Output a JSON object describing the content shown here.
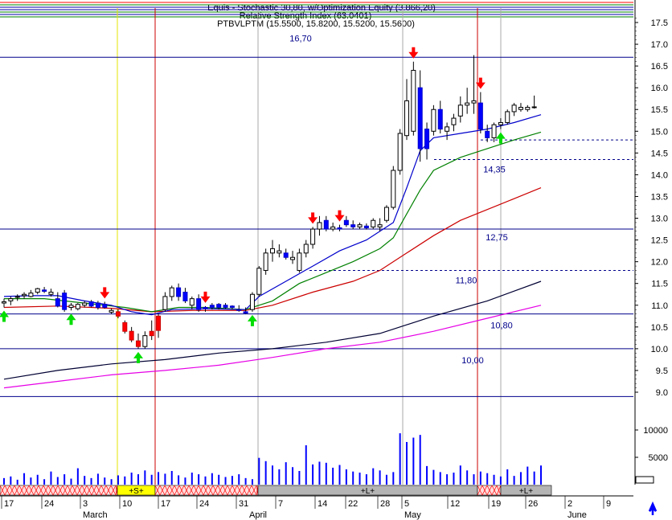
{
  "header": {
    "line1": "Equis - Stochastic 30,80, w/Optimization Equity (3.866,20)",
    "line2": "Relative Strength Index (63.0401)",
    "line3": "PTBVLPTM (15.5500, 15.8200, 15.5200, 15.5600)"
  },
  "colors": {
    "background": "#ffffff",
    "level_line": "#00008b",
    "up_candle": "#ffffff",
    "down_candle": "#0000ff",
    "red_candle": "#ff0000",
    "ma_fast": "#0000cc",
    "ma_green": "#008000",
    "ma_red": "#cc0000",
    "ma_black": "#000033",
    "ma_magenta": "#e600e6",
    "volume": "#0000ff",
    "buy_arrow": "#00dd00",
    "sell_arrow": "#ff0000",
    "signal_red": "#ff0000",
    "signal_yellow": "#ffff00",
    "signal_gray": "#b4b4b4"
  },
  "chart_data": {
    "type": "candlestick",
    "price_axis": {
      "ticks": [
        "17.5",
        "17.0",
        "16.5",
        "16.0",
        "15.5",
        "15.0",
        "14.5",
        "14.0",
        "13.5",
        "13.0",
        "12.5",
        "12.0",
        "11.5",
        "11.0",
        "10.5",
        "10.0",
        "9.5",
        "9.0"
      ],
      "range": [
        8.9,
        17.8
      ]
    },
    "volume_axis": {
      "ticks": [
        "10000",
        "5000"
      ],
      "range": [
        0,
        13000
      ]
    },
    "x_labels": [
      "17",
      "24",
      "3",
      "10",
      "17",
      "24",
      "31",
      "7",
      "14",
      "22",
      "28",
      "5",
      "12",
      "19",
      "26",
      "2",
      "9"
    ],
    "month_labels": [
      "March",
      "April",
      "May",
      "June"
    ],
    "level_lines": [
      {
        "value": 16.7,
        "label": "16,70"
      },
      {
        "value": 12.75,
        "label": "12,75"
      },
      {
        "value": 10.8,
        "label": "10,80"
      },
      {
        "value": 10.0,
        "label": "10,00"
      },
      {
        "value": 8.9,
        "label": ""
      }
    ],
    "dashed_levels": [
      {
        "value": 14.8,
        "label": "14,35",
        "label_value": 14.35
      },
      {
        "value": 14.35,
        "label": ""
      },
      {
        "value": 11.8,
        "label": "11,80"
      }
    ],
    "candles": [
      {
        "o": 11.05,
        "h": 11.15,
        "l": 10.95,
        "c": 11.08,
        "t": "u"
      },
      {
        "o": 11.1,
        "h": 11.2,
        "l": 11.0,
        "c": 11.15,
        "t": "u"
      },
      {
        "o": 11.18,
        "h": 11.25,
        "l": 11.1,
        "c": 11.2,
        "t": "u"
      },
      {
        "o": 11.22,
        "h": 11.3,
        "l": 11.15,
        "c": 11.25,
        "t": "u"
      },
      {
        "o": 11.2,
        "h": 11.35,
        "l": 11.18,
        "c": 11.28,
        "t": "u"
      },
      {
        "o": 11.3,
        "h": 11.4,
        "l": 11.25,
        "c": 11.38,
        "t": "u"
      },
      {
        "o": 11.35,
        "h": 11.42,
        "l": 11.28,
        "c": 11.32,
        "t": "d"
      },
      {
        "o": 11.3,
        "h": 11.38,
        "l": 11.2,
        "c": 11.25,
        "t": "u"
      },
      {
        "o": 11.15,
        "h": 11.3,
        "l": 10.95,
        "c": 10.98,
        "t": "d"
      },
      {
        "o": 11.28,
        "h": 11.35,
        "l": 10.85,
        "c": 10.9,
        "t": "d"
      },
      {
        "o": 10.95,
        "h": 11.05,
        "l": 10.88,
        "c": 11.0,
        "t": "u"
      },
      {
        "o": 10.92,
        "h": 11.05,
        "l": 10.88,
        "c": 11.02,
        "t": "u"
      },
      {
        "o": 11.0,
        "h": 11.1,
        "l": 10.95,
        "c": 11.05,
        "t": "u"
      },
      {
        "o": 11.08,
        "h": 11.12,
        "l": 10.95,
        "c": 10.98,
        "t": "d"
      },
      {
        "o": 10.95,
        "h": 11.1,
        "l": 10.9,
        "c": 11.05,
        "t": "d"
      },
      {
        "o": 11.02,
        "h": 11.08,
        "l": 10.92,
        "c": 10.95,
        "t": "d"
      },
      {
        "o": 10.88,
        "h": 10.92,
        "l": 10.8,
        "c": 10.84,
        "t": "u"
      },
      {
        "o": 10.85,
        "h": 10.9,
        "l": 10.7,
        "c": 10.75,
        "t": "r"
      },
      {
        "o": 10.6,
        "h": 10.65,
        "l": 10.35,
        "c": 10.4,
        "t": "r"
      },
      {
        "o": 10.4,
        "h": 10.5,
        "l": 10.15,
        "c": 10.2,
        "t": "r"
      },
      {
        "o": 10.18,
        "h": 10.35,
        "l": 10.0,
        "c": 10.05,
        "t": "r"
      },
      {
        "o": 10.05,
        "h": 10.4,
        "l": 10.0,
        "c": 10.3,
        "t": "u"
      },
      {
        "o": 10.4,
        "h": 10.65,
        "l": 10.2,
        "c": 10.3,
        "t": "r"
      },
      {
        "o": 10.42,
        "h": 10.8,
        "l": 10.25,
        "c": 10.75,
        "t": "r"
      },
      {
        "o": 10.9,
        "h": 11.3,
        "l": 10.85,
        "c": 11.2,
        "t": "u"
      },
      {
        "o": 11.2,
        "h": 11.45,
        "l": 11.1,
        "c": 11.4,
        "t": "u"
      },
      {
        "o": 11.4,
        "h": 11.5,
        "l": 11.1,
        "c": 11.2,
        "t": "d"
      },
      {
        "o": 11.3,
        "h": 11.4,
        "l": 11.05,
        "c": 11.1,
        "t": "d"
      },
      {
        "o": 11.0,
        "h": 11.2,
        "l": 10.9,
        "c": 11.15,
        "t": "u"
      },
      {
        "o": 11.15,
        "h": 11.25,
        "l": 10.85,
        "c": 10.9,
        "t": "d"
      },
      {
        "o": 10.92,
        "h": 10.98,
        "l": 10.85,
        "c": 10.95,
        "t": "d"
      },
      {
        "o": 10.95,
        "h": 11.05,
        "l": 10.9,
        "c": 11.0,
        "t": "d"
      },
      {
        "o": 10.95,
        "h": 11.05,
        "l": 10.9,
        "c": 11.02,
        "t": "d"
      },
      {
        "o": 11.0,
        "h": 11.05,
        "l": 10.92,
        "c": 10.95,
        "t": "d"
      },
      {
        "o": 10.95,
        "h": 11.0,
        "l": 10.9,
        "c": 10.98,
        "t": "d"
      },
      {
        "o": 10.9,
        "h": 11.0,
        "l": 10.85,
        "c": 10.88,
        "t": "d"
      },
      {
        "o": 10.85,
        "h": 10.95,
        "l": 10.8,
        "c": 10.82,
        "t": "d"
      },
      {
        "o": 10.9,
        "h": 11.3,
        "l": 10.85,
        "c": 11.25,
        "t": "u"
      },
      {
        "o": 11.25,
        "h": 11.9,
        "l": 11.2,
        "c": 11.85,
        "t": "u"
      },
      {
        "o": 11.8,
        "h": 12.3,
        "l": 11.7,
        "c": 12.2,
        "t": "u"
      },
      {
        "o": 12.2,
        "h": 12.5,
        "l": 12.0,
        "c": 12.3,
        "t": "u"
      },
      {
        "o": 12.25,
        "h": 12.4,
        "l": 12.1,
        "c": 12.2,
        "t": "u"
      },
      {
        "o": 12.2,
        "h": 12.3,
        "l": 12.05,
        "c": 12.1,
        "t": "d"
      },
      {
        "o": 12.1,
        "h": 12.25,
        "l": 11.95,
        "c": 12.05,
        "t": "u"
      },
      {
        "o": 11.8,
        "h": 12.3,
        "l": 11.75,
        "c": 12.2,
        "t": "u"
      },
      {
        "o": 12.2,
        "h": 12.5,
        "l": 12.1,
        "c": 12.4,
        "t": "u"
      },
      {
        "o": 12.4,
        "h": 12.8,
        "l": 12.3,
        "c": 12.75,
        "t": "u"
      },
      {
        "o": 12.75,
        "h": 13.05,
        "l": 12.6,
        "c": 12.9,
        "t": "u"
      },
      {
        "o": 12.95,
        "h": 13.05,
        "l": 12.7,
        "c": 12.75,
        "t": "d"
      },
      {
        "o": 12.75,
        "h": 12.9,
        "l": 12.7,
        "c": 12.8,
        "t": "u"
      },
      {
        "o": 12.75,
        "h": 12.85,
        "l": 12.7,
        "c": 12.78,
        "t": "d"
      },
      {
        "o": 12.95,
        "h": 13.05,
        "l": 12.8,
        "c": 12.85,
        "t": "d"
      },
      {
        "o": 12.85,
        "h": 12.95,
        "l": 12.75,
        "c": 12.8,
        "t": "d"
      },
      {
        "o": 12.8,
        "h": 12.9,
        "l": 12.75,
        "c": 12.85,
        "t": "u"
      },
      {
        "o": 12.78,
        "h": 12.88,
        "l": 12.74,
        "c": 12.82,
        "t": "d"
      },
      {
        "o": 12.8,
        "h": 13.0,
        "l": 12.75,
        "c": 12.95,
        "t": "u"
      },
      {
        "o": 12.85,
        "h": 13.0,
        "l": 12.7,
        "c": 12.8,
        "t": "u"
      },
      {
        "o": 12.95,
        "h": 13.3,
        "l": 12.9,
        "c": 13.25,
        "t": "u"
      },
      {
        "o": 13.25,
        "h": 14.2,
        "l": 13.2,
        "c": 14.1,
        "t": "u"
      },
      {
        "o": 14.1,
        "h": 15.05,
        "l": 14.0,
        "c": 14.95,
        "t": "u"
      },
      {
        "o": 14.9,
        "h": 16.2,
        "l": 14.8,
        "c": 15.7,
        "t": "u"
      },
      {
        "o": 15.0,
        "h": 16.6,
        "l": 14.9,
        "c": 16.4,
        "t": "u"
      },
      {
        "o": 16.0,
        "h": 16.4,
        "l": 14.3,
        "c": 14.6,
        "t": "d"
      },
      {
        "o": 14.6,
        "h": 15.2,
        "l": 14.35,
        "c": 15.05,
        "t": "d"
      },
      {
        "o": 15.0,
        "h": 15.6,
        "l": 14.9,
        "c": 15.5,
        "t": "u"
      },
      {
        "o": 15.5,
        "h": 15.7,
        "l": 14.95,
        "c": 15.05,
        "t": "d"
      },
      {
        "o": 15.0,
        "h": 15.2,
        "l": 14.8,
        "c": 15.1,
        "t": "u"
      },
      {
        "o": 15.15,
        "h": 15.4,
        "l": 15.0,
        "c": 15.3,
        "t": "u"
      },
      {
        "o": 15.35,
        "h": 15.8,
        "l": 15.2,
        "c": 15.6,
        "t": "u"
      },
      {
        "o": 15.6,
        "h": 16.0,
        "l": 15.4,
        "c": 15.65,
        "t": "u"
      },
      {
        "o": 15.7,
        "h": 16.75,
        "l": 15.4,
        "c": 15.65,
        "t": "u"
      },
      {
        "o": 15.65,
        "h": 15.9,
        "l": 14.95,
        "c": 15.05,
        "t": "d"
      },
      {
        "o": 15.0,
        "h": 15.15,
        "l": 14.75,
        "c": 14.85,
        "t": "d"
      },
      {
        "o": 14.85,
        "h": 15.2,
        "l": 14.75,
        "c": 15.15,
        "t": "u"
      },
      {
        "o": 15.15,
        "h": 15.3,
        "l": 15.05,
        "c": 15.2,
        "t": "u"
      },
      {
        "o": 15.2,
        "h": 15.5,
        "l": 15.15,
        "c": 15.45,
        "t": "u"
      },
      {
        "o": 15.45,
        "h": 15.65,
        "l": 15.35,
        "c": 15.6,
        "t": "u"
      },
      {
        "o": 15.55,
        "h": 15.65,
        "l": 15.45,
        "c": 15.5,
        "t": "u"
      },
      {
        "o": 15.5,
        "h": 15.6,
        "l": 15.45,
        "c": 15.55,
        "t": "u"
      },
      {
        "o": 15.55,
        "h": 15.82,
        "l": 15.52,
        "c": 15.56,
        "t": "u"
      }
    ],
    "volumes": [
      1200,
      1500,
      900,
      2100,
      1300,
      1800,
      1000,
      2400,
      1400,
      1900,
      1100,
      3000,
      1600,
      1200,
      2000,
      1300,
      1000,
      1700,
      1500,
      2200,
      1900,
      2600,
      1800,
      2300,
      2000,
      2500,
      1700,
      1300,
      2200,
      1900,
      1500,
      2100,
      1800,
      1400,
      1600,
      1900,
      1200,
      1000,
      4900,
      4300,
      3500,
      2800,
      4100,
      3200,
      2500,
      7200,
      3700,
      4200,
      4000,
      3100,
      3600,
      2800,
      2400,
      2200,
      1900,
      3000,
      2600,
      1800,
      2300,
      9400,
      7800,
      8600,
      9100,
      3400,
      2700,
      2300,
      1900,
      2200,
      3500,
      2600,
      1900,
      2400,
      2100,
      1800,
      1500,
      2800,
      1600,
      2300,
      3300,
      2400,
      3500
    ],
    "ma_blue": [
      [
        0,
        11.2
      ],
      [
        4,
        11.22
      ],
      [
        8,
        11.22
      ],
      [
        12,
        11.1
      ],
      [
        16,
        11.0
      ],
      [
        19,
        10.85
      ],
      [
        22,
        10.78
      ],
      [
        25,
        10.9
      ],
      [
        30,
        10.92
      ],
      [
        36,
        10.9
      ],
      [
        38,
        11.2
      ],
      [
        42,
        11.55
      ],
      [
        46,
        11.9
      ],
      [
        50,
        12.25
      ],
      [
        54,
        12.5
      ],
      [
        58,
        12.9
      ],
      [
        60,
        13.7
      ],
      [
        62,
        14.55
      ],
      [
        64,
        14.85
      ],
      [
        68,
        14.95
      ],
      [
        72,
        15.05
      ],
      [
        76,
        15.2
      ],
      [
        80,
        15.38
      ]
    ],
    "ma_green": [
      [
        0,
        11.15
      ],
      [
        6,
        11.15
      ],
      [
        12,
        11.05
      ],
      [
        18,
        10.95
      ],
      [
        22,
        10.85
      ],
      [
        26,
        10.95
      ],
      [
        30,
        10.95
      ],
      [
        36,
        10.9
      ],
      [
        40,
        11.1
      ],
      [
        44,
        11.5
      ],
      [
        48,
        11.75
      ],
      [
        52,
        12.0
      ],
      [
        56,
        12.3
      ],
      [
        58,
        12.55
      ],
      [
        60,
        13.1
      ],
      [
        62,
        13.65
      ],
      [
        64,
        14.1
      ],
      [
        68,
        14.4
      ],
      [
        72,
        14.6
      ],
      [
        76,
        14.8
      ],
      [
        80,
        14.98
      ]
    ],
    "ma_red": [
      [
        0,
        10.95
      ],
      [
        8,
        10.98
      ],
      [
        16,
        10.93
      ],
      [
        22,
        10.85
      ],
      [
        28,
        10.88
      ],
      [
        36,
        10.88
      ],
      [
        40,
        11.0
      ],
      [
        46,
        11.3
      ],
      [
        52,
        11.55
      ],
      [
        56,
        11.8
      ],
      [
        60,
        12.2
      ],
      [
        64,
        12.6
      ],
      [
        68,
        12.95
      ],
      [
        72,
        13.2
      ],
      [
        76,
        13.45
      ],
      [
        80,
        13.7
      ]
    ],
    "ma_black": [
      [
        0,
        9.3
      ],
      [
        8,
        9.5
      ],
      [
        16,
        9.65
      ],
      [
        24,
        9.75
      ],
      [
        32,
        9.9
      ],
      [
        40,
        10.0
      ],
      [
        48,
        10.15
      ],
      [
        56,
        10.35
      ],
      [
        64,
        10.75
      ],
      [
        72,
        11.1
      ],
      [
        80,
        11.55
      ]
    ],
    "ma_magenta": [
      [
        0,
        9.1
      ],
      [
        8,
        9.25
      ],
      [
        16,
        9.4
      ],
      [
        24,
        9.5
      ],
      [
        32,
        9.62
      ],
      [
        40,
        9.8
      ],
      [
        48,
        10.0
      ],
      [
        56,
        10.15
      ],
      [
        64,
        10.4
      ],
      [
        72,
        10.7
      ],
      [
        80,
        11.0
      ]
    ],
    "buy_signals": [
      0,
      10,
      20,
      37,
      74
    ],
    "sell_signals": [
      61,
      71,
      15,
      30,
      46,
      50
    ],
    "signal_bar": [
      {
        "label": "",
        "state": "red"
      },
      {
        "label": "+S+",
        "state": "yellow"
      },
      {
        "label": "",
        "state": "red"
      },
      {
        "label": "+L+",
        "state": "gray"
      },
      {
        "label": "",
        "state": "red"
      },
      {
        "label": "+L+",
        "state": "gray"
      }
    ]
  },
  "nav": {
    "up_arrow": "arrow-up-icon"
  }
}
